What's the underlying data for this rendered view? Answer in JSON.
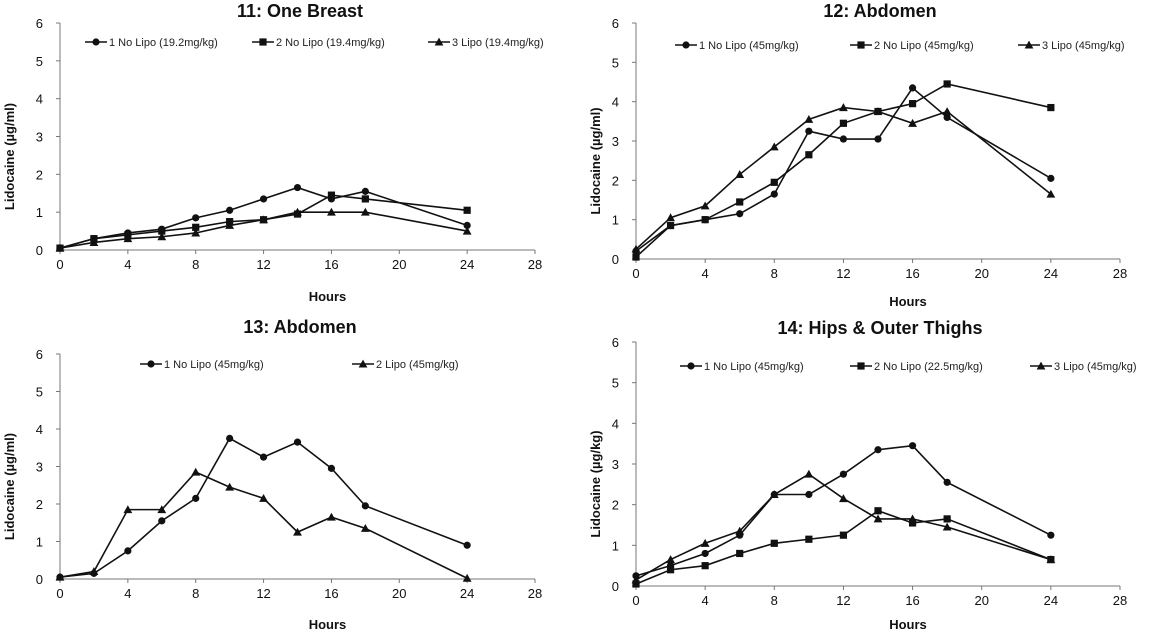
{
  "chart_data": [
    {
      "type": "line",
      "title": "11: One Breast",
      "xlabel": "Hours",
      "ylabel": "Lidocaine (µg/ml)",
      "xlim": [
        0,
        28
      ],
      "ylim": [
        0,
        6
      ],
      "xticks": [
        0,
        4,
        8,
        12,
        16,
        20,
        24,
        28
      ],
      "yticks": [
        0,
        1,
        2,
        3,
        4,
        5,
        6
      ],
      "grid": false,
      "legend": "top",
      "series": [
        {
          "name": "1 No Lipo (19.2mg/kg)",
          "marker": "circle",
          "x": [
            0,
            2,
            4,
            6,
            8,
            10,
            12,
            14,
            16,
            18,
            24
          ],
          "y": [
            0.05,
            0.3,
            0.45,
            0.55,
            0.85,
            1.05,
            1.35,
            1.65,
            1.35,
            1.55,
            0.65
          ]
        },
        {
          "name": "2 No Lipo (19.4mg/kg)",
          "marker": "square",
          "x": [
            0,
            2,
            4,
            6,
            8,
            10,
            12,
            14,
            16,
            18,
            24
          ],
          "y": [
            0.05,
            0.3,
            0.4,
            0.5,
            0.6,
            0.75,
            0.8,
            0.95,
            1.45,
            1.35,
            1.05
          ]
        },
        {
          "name": "3 Lipo (19.4mg/kg)",
          "marker": "triangle",
          "x": [
            0,
            2,
            4,
            6,
            8,
            10,
            12,
            14,
            16,
            18,
            24
          ],
          "y": [
            0.05,
            0.2,
            0.3,
            0.35,
            0.45,
            0.65,
            0.8,
            1.0,
            1.0,
            1.0,
            0.5
          ]
        }
      ]
    },
    {
      "type": "line",
      "title": "12: Abdomen",
      "xlabel": "Hours",
      "ylabel": "Lidocaine (µg/ml)",
      "xlim": [
        0,
        28
      ],
      "ylim": [
        0,
        6
      ],
      "xticks": [
        0,
        4,
        8,
        12,
        16,
        20,
        24,
        28
      ],
      "yticks": [
        0,
        1,
        2,
        3,
        4,
        5,
        6
      ],
      "grid": false,
      "legend": "top",
      "series": [
        {
          "name": "1 No Lipo (45mg/kg)",
          "marker": "circle",
          "x": [
            0,
            2,
            4,
            6,
            8,
            10,
            12,
            14,
            16,
            18,
            24
          ],
          "y": [
            0.2,
            0.85,
            1.0,
            1.15,
            1.65,
            3.25,
            3.05,
            3.05,
            4.35,
            3.6,
            2.05
          ]
        },
        {
          "name": "2 No Lipo (45mg/kg)",
          "marker": "square",
          "x": [
            0,
            2,
            4,
            6,
            8,
            10,
            12,
            14,
            16,
            18,
            24
          ],
          "y": [
            0.05,
            0.85,
            1.0,
            1.45,
            1.95,
            2.65,
            3.45,
            3.75,
            3.95,
            4.45,
            3.85
          ]
        },
        {
          "name": "3 Lipo (45mg/kg)",
          "marker": "triangle",
          "x": [
            0,
            2,
            4,
            6,
            8,
            10,
            12,
            14,
            16,
            18,
            24
          ],
          "y": [
            0.25,
            1.05,
            1.35,
            2.15,
            2.85,
            3.55,
            3.85,
            3.75,
            3.45,
            3.75,
            1.65
          ]
        }
      ]
    },
    {
      "type": "line",
      "title": "13: Abdomen",
      "xlabel": "Hours",
      "ylabel": "Lidocaine (µg/ml)",
      "xlim": [
        0,
        28
      ],
      "ylim": [
        0,
        6
      ],
      "xticks": [
        0,
        4,
        8,
        12,
        16,
        20,
        24,
        28
      ],
      "yticks": [
        0,
        1,
        2,
        3,
        4,
        5,
        6
      ],
      "grid": false,
      "legend": "top",
      "series": [
        {
          "name": "1 No Lipo (45mg/kg)",
          "marker": "circle",
          "x": [
            0,
            2,
            4,
            6,
            8,
            10,
            12,
            14,
            16,
            18,
            24
          ],
          "y": [
            0.05,
            0.15,
            0.75,
            1.55,
            2.15,
            3.75,
            3.25,
            3.65,
            2.95,
            1.95,
            0.9
          ]
        },
        {
          "name": "2 Lipo (45mg/kg)",
          "marker": "triangle",
          "x": [
            0,
            2,
            4,
            6,
            8,
            10,
            12,
            14,
            16,
            18,
            24
          ],
          "y": [
            0.05,
            0.2,
            1.85,
            1.85,
            2.85,
            2.45,
            2.15,
            1.25,
            1.65,
            1.35,
            0.02
          ]
        }
      ]
    },
    {
      "type": "line",
      "title": "14: Hips & Outer Thighs",
      "xlabel": "Hours",
      "ylabel": "Lidocaine (µg/kg)",
      "xlim": [
        0,
        28
      ],
      "ylim": [
        0,
        6
      ],
      "xticks": [
        0,
        4,
        8,
        12,
        16,
        20,
        24,
        28
      ],
      "yticks": [
        0,
        1,
        2,
        3,
        4,
        5,
        6
      ],
      "grid": false,
      "legend": "top",
      "series": [
        {
          "name": "1 No Lipo (45mg/kg)",
          "marker": "circle",
          "x": [
            0,
            2,
            4,
            6,
            8,
            10,
            12,
            14,
            16,
            18,
            24
          ],
          "y": [
            0.25,
            0.5,
            0.8,
            1.25,
            2.25,
            2.25,
            2.75,
            3.35,
            3.45,
            2.55,
            1.25
          ]
        },
        {
          "name": "2 No Lipo (22.5mg/kg)",
          "marker": "square",
          "x": [
            0,
            2,
            4,
            6,
            8,
            10,
            12,
            14,
            16,
            18,
            24
          ],
          "y": [
            0.05,
            0.4,
            0.5,
            0.8,
            1.05,
            1.15,
            1.25,
            1.85,
            1.55,
            1.65,
            0.65
          ]
        },
        {
          "name": "3 Lipo (45mg/kg)",
          "marker": "triangle",
          "x": [
            0,
            2,
            4,
            6,
            8,
            10,
            12,
            14,
            16,
            18,
            24
          ],
          "y": [
            0.15,
            0.65,
            1.05,
            1.35,
            2.25,
            2.75,
            2.15,
            1.65,
            1.65,
            1.45,
            0.65
          ]
        }
      ]
    }
  ]
}
